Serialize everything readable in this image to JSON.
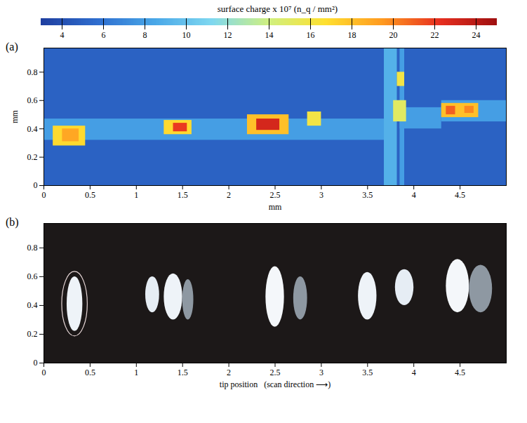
{
  "chart_data": [
    {
      "type": "heatmap",
      "label": "(a)",
      "x_label": "mm",
      "y_label": "mm",
      "xlim": [
        0,
        5
      ],
      "ylim": [
        0,
        0.97
      ],
      "xticks": [
        0,
        0.5,
        1,
        1.5,
        2,
        2.5,
        3,
        3.5,
        4,
        4.5
      ],
      "yticks": [
        0,
        0.2,
        0.4,
        0.6,
        0.8
      ],
      "colorbar": {
        "title": "surface charge x 10⁷ (n_q / mm²)",
        "range": [
          3,
          25
        ],
        "ticks": [
          4,
          6,
          8,
          10,
          12,
          14,
          16,
          18,
          20,
          22,
          24
        ]
      },
      "cells": [
        {
          "x1": 0,
          "x2": 5,
          "y1": 0,
          "y2": 0.97,
          "value": 5
        },
        {
          "x1": 0,
          "x2": 3.7,
          "y1": 0.32,
          "y2": 0.47,
          "value": 8
        },
        {
          "x1": 3.85,
          "x2": 4.3,
          "y1": 0.4,
          "y2": 0.55,
          "value": 8
        },
        {
          "x1": 4.3,
          "x2": 5,
          "y1": 0.45,
          "y2": 0.6,
          "value": 8
        },
        {
          "x1": 3.68,
          "x2": 3.82,
          "y1": 0,
          "y2": 0.97,
          "value": 9
        },
        {
          "x1": 3.85,
          "x2": 3.9,
          "y1": 0,
          "y2": 0.97,
          "value": 8
        },
        {
          "x1": 0.1,
          "x2": 0.45,
          "y1": 0.28,
          "y2": 0.42,
          "value": 17
        },
        {
          "x1": 0.2,
          "x2": 0.38,
          "y1": 0.31,
          "y2": 0.4,
          "value": 19
        },
        {
          "x1": 1.3,
          "x2": 1.6,
          "y1": 0.36,
          "y2": 0.46,
          "value": 17
        },
        {
          "x1": 1.4,
          "x2": 1.55,
          "y1": 0.38,
          "y2": 0.44,
          "value": 22
        },
        {
          "x1": 2.2,
          "x2": 2.65,
          "y1": 0.36,
          "y2": 0.5,
          "value": 18
        },
        {
          "x1": 2.3,
          "x2": 2.55,
          "y1": 0.39,
          "y2": 0.47,
          "value": 23
        },
        {
          "x1": 2.85,
          "x2": 3.0,
          "y1": 0.42,
          "y2": 0.52,
          "value": 16
        },
        {
          "x1": 3.78,
          "x2": 3.92,
          "y1": 0.45,
          "y2": 0.6,
          "value": 15
        },
        {
          "x1": 3.82,
          "x2": 3.9,
          "y1": 0.7,
          "y2": 0.8,
          "value": 16
        },
        {
          "x1": 4.3,
          "x2": 4.7,
          "y1": 0.48,
          "y2": 0.58,
          "value": 18
        },
        {
          "x1": 4.35,
          "x2": 4.45,
          "y1": 0.5,
          "y2": 0.56,
          "value": 21
        },
        {
          "x1": 4.55,
          "x2": 4.65,
          "y1": 0.51,
          "y2": 0.56,
          "value": 20
        }
      ]
    },
    {
      "type": "image",
      "label": "(b)",
      "x_label": "tip position   (scan direction ⟶)",
      "xlim": [
        0,
        5
      ],
      "ylim": [
        0,
        0.97
      ],
      "xticks": [
        0,
        0.5,
        1,
        1.5,
        2,
        2.5,
        3,
        3.5,
        4,
        4.5
      ],
      "yticks": [
        0,
        0.2,
        0.4,
        0.6,
        0.8
      ],
      "spots": [
        {
          "x1": 0.25,
          "x2": 0.42,
          "y1": 0.22,
          "y2": 0.6,
          "color": "#eef3f8",
          "outline": true
        },
        {
          "x1": 1.1,
          "x2": 1.25,
          "y1": 0.35,
          "y2": 0.6,
          "color": "#e6edf4"
        },
        {
          "x1": 1.3,
          "x2": 1.5,
          "y1": 0.3,
          "y2": 0.62,
          "color": "#eef3f8"
        },
        {
          "x1": 1.5,
          "x2": 1.62,
          "y1": 0.3,
          "y2": 0.58,
          "color": "#8e98a2"
        },
        {
          "x1": 2.4,
          "x2": 2.6,
          "y1": 0.25,
          "y2": 0.67,
          "color": "#f4f7fa"
        },
        {
          "x1": 2.7,
          "x2": 2.85,
          "y1": 0.3,
          "y2": 0.6,
          "color": "#8e98a2"
        },
        {
          "x1": 3.4,
          "x2": 3.6,
          "y1": 0.3,
          "y2": 0.63,
          "color": "#eef3f8"
        },
        {
          "x1": 3.8,
          "x2": 4.0,
          "y1": 0.4,
          "y2": 0.65,
          "color": "#e6edf4"
        },
        {
          "x1": 4.35,
          "x2": 4.6,
          "y1": 0.35,
          "y2": 0.72,
          "color": "#f4f7fa"
        },
        {
          "x1": 4.6,
          "x2": 4.85,
          "y1": 0.35,
          "y2": 0.68,
          "color": "#8e98a2"
        }
      ]
    }
  ]
}
